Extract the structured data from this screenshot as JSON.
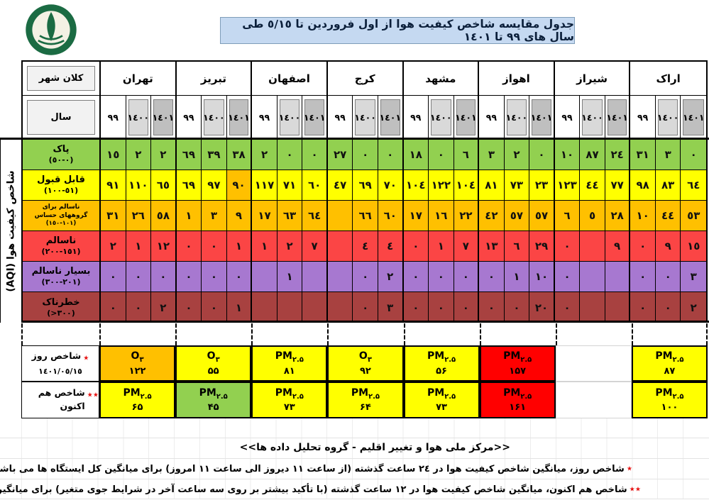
{
  "title": "جدول مقایسه شاخص کیفیت هوا از اول فروردین تا ٥/١٥ طی سال های ٩٩ تا ١٤٠١",
  "logo": {
    "alt": "سازمان حفاظت محیط زیست"
  },
  "table": {
    "corner_label": "کلان شهر",
    "year_row_label": "سال",
    "axis_label": "شاخص کیفیت هوا (AQI)",
    "cities": [
      "تهران",
      "تبریز",
      "اصفهان",
      "کرج",
      "مشهد",
      "اهواز",
      "شیراز",
      "اراک"
    ],
    "years": [
      "٩٩",
      "١٤٠٠",
      "١٤٠١"
    ],
    "year_colors": [
      "#ffffff",
      "#d9d9d9",
      "#bfbfbf"
    ],
    "rows": [
      {
        "label_lines": [
          "پاک"
        ],
        "range": "(٠-٥٠)",
        "color": "#92d050",
        "values": [
          "١٥",
          "٢",
          "٢",
          "٦٩",
          "٣٩",
          "٣٨",
          "٢",
          "٠",
          "٠",
          "٢٧",
          "٠",
          "٠",
          "١٨",
          "٠",
          "٦",
          "٣",
          "٢",
          "٠",
          "١٠",
          "٨٧",
          "٢٤",
          "٣١",
          "٣",
          "٠"
        ]
      },
      {
        "label_lines": [
          "قابل قبول"
        ],
        "range": "(٥١-١٠٠)",
        "color": "#ffff00",
        "highlight": {
          "index": 5,
          "color": "#ffc000"
        },
        "values": [
          "٩١",
          "١١٠",
          "٦٥",
          "٦٩",
          "٩٧",
          "٩٠",
          "١١٧",
          "٧١",
          "٦٠",
          "٤٧",
          "٦٩",
          "٧٠",
          "١٠٤",
          "١٢٢",
          "١٠٤",
          "٨١",
          "٧٣",
          "٢٣",
          "١٢٣",
          "٤٤",
          "٧٧",
          "٩٨",
          "٨٣",
          "٦٤"
        ]
      },
      {
        "label_lines": [
          "ناسالم برای",
          "گروههای حساس"
        ],
        "range": "(١٠١-١٥٠)",
        "color": "#ffc000",
        "small": true,
        "values": [
          "٣١",
          "٢٦",
          "٥٨",
          "١",
          "٣",
          "٩",
          "١٧",
          "٦٣",
          "٦٤",
          "",
          "٦٦",
          "٦٠",
          "١٧",
          "١٦",
          "٢٢",
          "٤٢",
          "٥٧",
          "٥٧",
          "٦",
          "٥",
          "٢٨",
          "١٠",
          "٤٤",
          "٥٣"
        ]
      },
      {
        "label_lines": [
          "ناسالم"
        ],
        "range": "(١٥١-٢٠٠)",
        "color": "#fb4545",
        "values": [
          "٢",
          "١",
          "١٢",
          "٠",
          "٠",
          "١",
          "١",
          "٢",
          "٧",
          "",
          "٤",
          "٤",
          "٠",
          "١",
          "٧",
          "١٣",
          "٦",
          "٢٩",
          "٠",
          "",
          "٩",
          "٠",
          "٩",
          "١٥"
        ]
      },
      {
        "label_lines": [
          "بسیار ناسالم"
        ],
        "range": "(٢٠١-٣٠٠)",
        "color": "#a778d0",
        "values": [
          "٠",
          "٠",
          "٠",
          "٠",
          "٠",
          "٠",
          "",
          "١",
          "",
          "",
          "٠",
          "٢",
          "٠",
          "٠",
          "٠",
          "٠",
          "١",
          "١٠",
          "٠",
          "",
          "",
          "٠",
          "٠",
          "٣"
        ]
      },
      {
        "label_lines": [
          "خطرناک"
        ],
        "range": "(>٣٠٠)",
        "color": "#a84140",
        "values": [
          "٠",
          "٠",
          "٢",
          "٠",
          "٠",
          "١",
          "",
          "",
          "",
          "",
          "٠",
          "٣",
          "٠",
          "٠",
          "٠",
          "٠",
          "٠",
          "٢٠",
          "٠",
          "",
          "",
          "٠",
          "٠",
          "٢"
        ]
      }
    ]
  },
  "bottom": {
    "day": {
      "marker": "٭",
      "label": "شاخص روز",
      "date": "١٤٠١/٠٥/١٥",
      "cells": [
        {
          "p": "O",
          "sub": "٣",
          "value": "۱۲۲",
          "bg": "#ffc000"
        },
        {
          "p": "O",
          "sub": "٣",
          "value": "۵۵",
          "bg": "#ffff00"
        },
        {
          "p": "PM",
          "sub": "۲.۵",
          "value": "۸۱",
          "bg": "#ffff00"
        },
        {
          "p": "O",
          "sub": "٣",
          "value": "۹۲",
          "bg": "#ffff00"
        },
        {
          "p": "PM",
          "sub": "۲.۵",
          "value": "۵۶",
          "bg": "#ffff00"
        },
        {
          "p": "PM",
          "sub": "۲.۵",
          "value": "۱۵۷",
          "bg": "#ff0000"
        },
        {
          "p": "",
          "sub": "",
          "value": "",
          "bg": "#ffffff"
        },
        {
          "p": "PM",
          "sub": "۲.۵",
          "value": "۸۷",
          "bg": "#ffff00"
        }
      ]
    },
    "now": {
      "marker": "٭٭",
      "label": "شاخص هم اکنون",
      "cells": [
        {
          "p": "PM",
          "sub": "۲.۵",
          "value": "۶۵",
          "bg": "#ffff00"
        },
        {
          "p": "PM",
          "sub": "۲.۵",
          "value": "۴۵",
          "bg": "#92d050"
        },
        {
          "p": "PM",
          "sub": "۲.۵",
          "value": "۷۳",
          "bg": "#ffff00"
        },
        {
          "p": "PM",
          "sub": "۲.۵",
          "value": "۶۴",
          "bg": "#ffff00"
        },
        {
          "p": "PM",
          "sub": "۲.۵",
          "value": "۷۳",
          "bg": "#ffff00"
        },
        {
          "p": "PM",
          "sub": "۲.۵",
          "value": "۱۶۱",
          "bg": "#ff0000"
        },
        {
          "p": "",
          "sub": "",
          "value": "",
          "bg": "#ffffff"
        },
        {
          "p": "PM",
          "sub": "۲.۵",
          "value": "۱۰۰",
          "bg": "#ffff00"
        }
      ]
    }
  },
  "footer": {
    "credit": "<<مرکز ملی هوا و تغییر اقلیم - گروه تحلیل داده ها>>",
    "note1_marker": "٭",
    "note1": "شاخص روز، میانگین شاخص کیفیت هوا در ٢٤ ساعت گذشته (از ساعت ١١ دیروز الی ساعت ١١ امروز) برای میانگین کل ایستگاه ها می باشد.",
    "note2_marker": "٭٭",
    "note2": "شاخص هم اکنون، میانگین شاخص کیفیت هوا در ١٢ ساعت گذشته (با تأکید بیشتر بر روی سه ساعت آخر در شرایط جوی متغیر) برای میانگین کل ایستگاه ها می باشد."
  },
  "colors": {
    "banner": "#c5d9f1",
    "highlight": "#ffc000",
    "alert_red": "#ff0000",
    "good_green": "#92d050"
  }
}
